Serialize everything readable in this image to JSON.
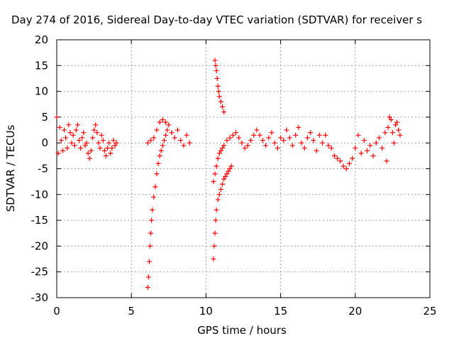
{
  "chart_data": {
    "type": "scatter",
    "title": "Day 274 of 2016, Sidereal Day-to-day VTEC variation (SDTVAR) for receiver s",
    "xlabel": "GPS time / hours",
    "ylabel": "SDTVAR / TECUs",
    "xlim": [
      0,
      25
    ],
    "ylim": [
      -30,
      20
    ],
    "xticks": [
      0,
      5,
      10,
      15,
      20,
      25
    ],
    "yticks": [
      -30,
      -25,
      -20,
      -15,
      -10,
      -5,
      0,
      5,
      10,
      15,
      20
    ],
    "grid": true,
    "marker": "+",
    "color": "#ff0000",
    "segments": [
      {
        "x": [
          0.0,
          0.1,
          0.2,
          0.3,
          0.4,
          0.5,
          0.6,
          0.7,
          0.8,
          0.9,
          1.0,
          1.1,
          1.2,
          1.3,
          1.4,
          1.5,
          1.6,
          1.7,
          1.8,
          1.9,
          2.0,
          2.1,
          2.2,
          2.3,
          2.4,
          2.5,
          2.6,
          2.7,
          2.8,
          2.9,
          3.0,
          3.1,
          3.2,
          3.3,
          3.4,
          3.5,
          3.6,
          3.7,
          3.8,
          3.9,
          4.0
        ],
        "y": [
          5.0,
          -2.0,
          3.0,
          0.5,
          -1.5,
          2.5,
          1.0,
          -1.0,
          3.5,
          2.0,
          0.0,
          1.5,
          -0.5,
          2.5,
          3.5,
          0.5,
          -1.0,
          1.0,
          2.0,
          -0.5,
          0.0,
          -2.0,
          -3.0,
          -1.5,
          1.0,
          2.5,
          3.5,
          2.0,
          0.0,
          -1.0,
          1.5,
          0.5,
          -1.5,
          -2.5,
          -1.0,
          0.0,
          -2.0,
          -1.0,
          0.5,
          -0.5,
          0.0
        ]
      },
      {
        "x": [
          6.1,
          6.15,
          6.2,
          6.25,
          6.3,
          6.35,
          6.4,
          6.5,
          6.6,
          6.7,
          6.8,
          6.9,
          7.0,
          7.1,
          7.2,
          7.3,
          7.4
        ],
        "y": [
          -28.0,
          -26.0,
          -23.0,
          -20.0,
          -17.5,
          -15.0,
          -13.0,
          -10.5,
          -8.5,
          -6.0,
          -4.0,
          -2.5,
          -1.5,
          -0.5,
          0.5,
          1.5,
          2.5
        ]
      },
      {
        "x": [
          6.1,
          6.3,
          6.5,
          6.7,
          6.9,
          7.1,
          7.3,
          7.5,
          7.7,
          7.9,
          8.1,
          8.3,
          8.5,
          8.7,
          8.9
        ],
        "y": [
          0.0,
          0.5,
          1.0,
          2.5,
          4.0,
          4.5,
          4.0,
          3.5,
          2.0,
          1.0,
          2.5,
          0.5,
          -0.5,
          1.5,
          0.0
        ]
      },
      {
        "x": [
          10.6,
          10.65,
          10.7,
          10.75,
          10.8,
          10.85,
          10.9,
          11.0,
          11.1,
          11.2
        ],
        "y": [
          16.0,
          15.0,
          14.0,
          12.5,
          11.0,
          10.0,
          9.0,
          8.0,
          7.0,
          6.0
        ]
      },
      {
        "x": [
          10.5,
          10.55,
          10.6,
          10.65,
          10.7,
          10.8,
          10.9,
          11.0,
          11.1,
          11.2,
          11.3,
          11.4,
          11.5,
          11.6,
          11.7
        ],
        "y": [
          -22.5,
          -20.0,
          -17.5,
          -15.0,
          -13.0,
          -11.0,
          -10.0,
          -9.0,
          -8.0,
          -7.0,
          -6.5,
          -6.0,
          -5.5,
          -5.0,
          -4.5
        ]
      },
      {
        "x": [
          10.5,
          10.6,
          10.7,
          10.8,
          10.9,
          11.0,
          11.1,
          11.2,
          11.4,
          11.6,
          11.8,
          12.0,
          12.2,
          12.4,
          12.6,
          12.8,
          13.0,
          13.2,
          13.4,
          13.6,
          13.8,
          14.0,
          14.2,
          14.4,
          14.6,
          14.8,
          15.0
        ],
        "y": [
          -7.5,
          -6.0,
          -4.5,
          -3.0,
          -2.0,
          -1.5,
          -1.0,
          -0.5,
          0.5,
          1.0,
          1.5,
          2.0,
          1.0,
          0.0,
          -1.0,
          -0.5,
          0.5,
          1.5,
          2.5,
          1.5,
          0.5,
          -0.5,
          1.0,
          2.0,
          0.0,
          -1.0,
          1.0
        ]
      },
      {
        "x": [
          15.2,
          15.4,
          15.6,
          15.8,
          16.0,
          16.2,
          16.4,
          16.6,
          16.8,
          17.0,
          17.2,
          17.4,
          17.6,
          17.8,
          18.0,
          18.2,
          18.4,
          18.6,
          18.8,
          19.0,
          19.2,
          19.4,
          19.6,
          19.8
        ],
        "y": [
          0.5,
          2.5,
          1.0,
          -0.5,
          1.5,
          3.0,
          0.0,
          -1.0,
          1.0,
          2.0,
          0.5,
          -1.5,
          1.5,
          0.0,
          1.5,
          -0.5,
          -1.0,
          -2.5,
          -3.0,
          -3.5,
          -4.5,
          -5.0,
          -4.0,
          -3.0
        ]
      },
      {
        "x": [
          20.0,
          20.2,
          20.4,
          20.6,
          20.8,
          21.0,
          21.2,
          21.4,
          21.6,
          21.8,
          22.0,
          22.1,
          22.2,
          22.3,
          22.4,
          22.5,
          22.6,
          22.7,
          22.8,
          22.9,
          23.0
        ],
        "y": [
          -1.0,
          1.5,
          -2.0,
          0.5,
          -1.5,
          -0.5,
          -2.5,
          0.0,
          1.0,
          -1.0,
          2.0,
          -3.5,
          3.0,
          5.0,
          4.5,
          2.0,
          0.0,
          3.5,
          4.0,
          2.5,
          1.5
        ]
      }
    ]
  }
}
